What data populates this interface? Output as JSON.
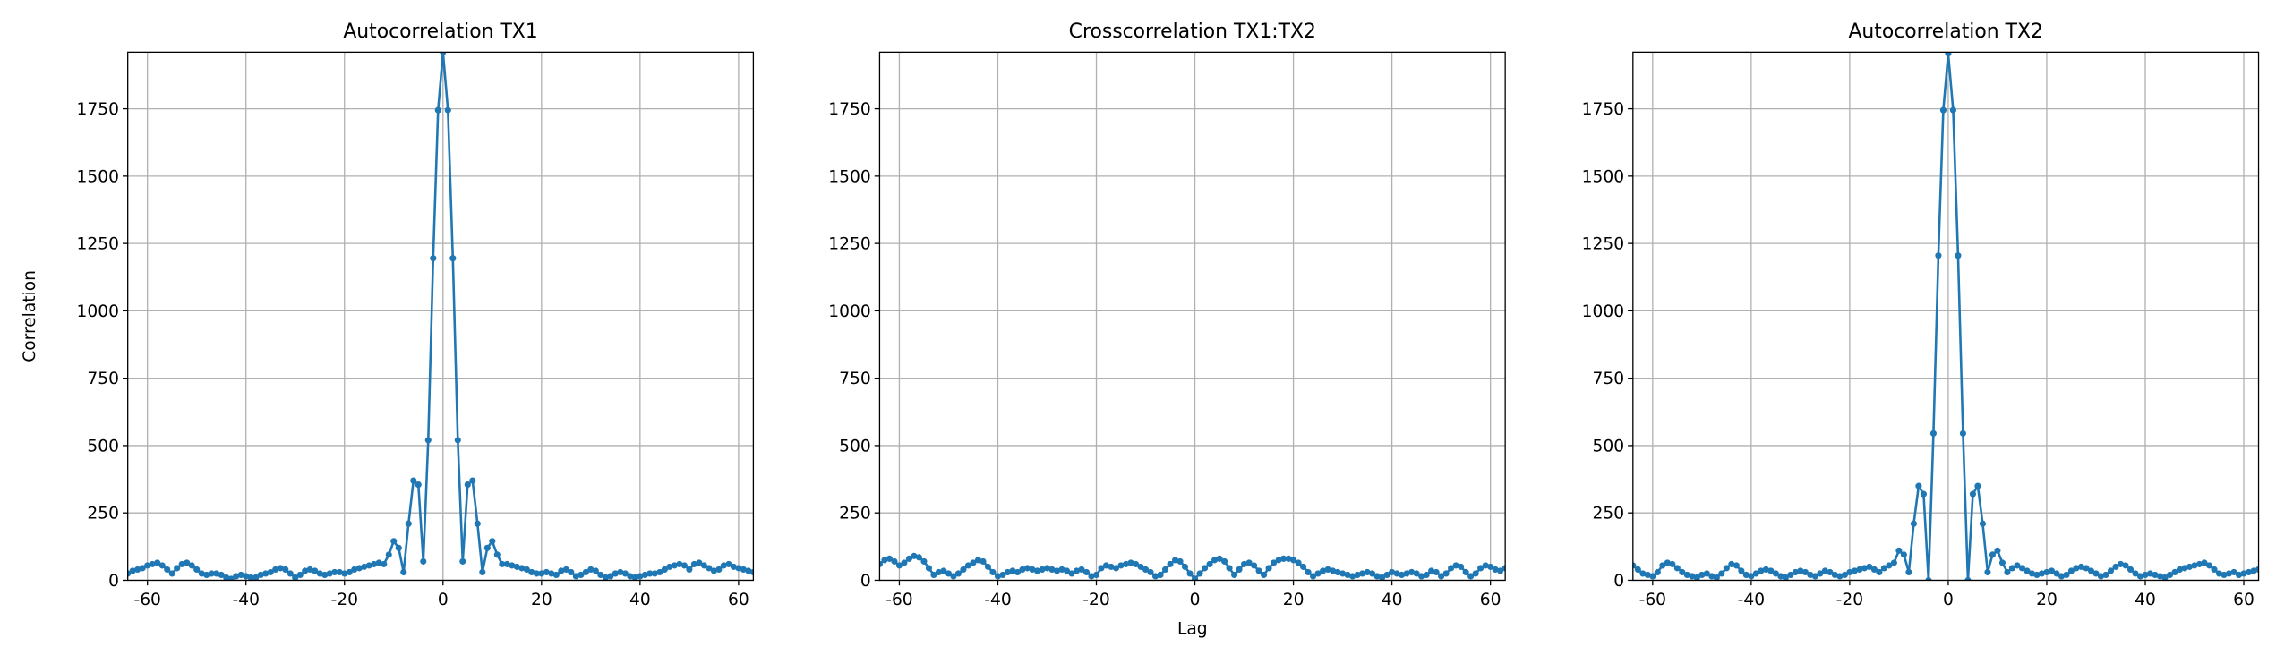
{
  "chart_data": [
    {
      "type": "line",
      "title": "Autocorrelation TX1",
      "ylabel": "Correlation",
      "x": [
        -64,
        -63,
        -62,
        -61,
        -60,
        -59,
        -58,
        -57,
        -56,
        -55,
        -54,
        -53,
        -52,
        -51,
        -50,
        -49,
        -48,
        -47,
        -46,
        -45,
        -44,
        -43,
        -42,
        -41,
        -40,
        -39,
        -38,
        -37,
        -36,
        -35,
        -34,
        -33,
        -32,
        -31,
        -30,
        -29,
        -28,
        -27,
        -26,
        -25,
        -24,
        -23,
        -22,
        -21,
        -20,
        -19,
        -18,
        -17,
        -16,
        -15,
        -14,
        -13,
        -12,
        -11,
        -10,
        -9,
        -8,
        -7,
        -6,
        -5,
        -4,
        -3,
        -2,
        -1,
        0,
        1,
        2,
        3,
        4,
        5,
        6,
        7,
        8,
        9,
        10,
        11,
        12,
        13,
        14,
        15,
        16,
        17,
        18,
        19,
        20,
        21,
        22,
        23,
        24,
        25,
        26,
        27,
        28,
        29,
        30,
        31,
        32,
        33,
        34,
        35,
        36,
        37,
        38,
        39,
        40,
        41,
        42,
        43,
        44,
        45,
        46,
        47,
        48,
        49,
        50,
        51,
        52,
        53,
        54,
        55,
        56,
        57,
        58,
        59,
        60,
        61,
        62,
        63
      ],
      "series": [
        {
          "color": "#1f77b4",
          "values": [
            25,
            35,
            40,
            45,
            55,
            60,
            65,
            55,
            40,
            25,
            45,
            60,
            65,
            55,
            40,
            25,
            20,
            25,
            25,
            20,
            10,
            5,
            15,
            20,
            15,
            10,
            10,
            20,
            25,
            30,
            40,
            45,
            40,
            25,
            10,
            20,
            35,
            40,
            35,
            25,
            20,
            25,
            30,
            30,
            25,
            30,
            40,
            45,
            50,
            55,
            60,
            65,
            60,
            95,
            145,
            120,
            30,
            210,
            370,
            355,
            70,
            520,
            1195,
            1745,
            1960,
            1745,
            1195,
            520,
            70,
            355,
            370,
            210,
            30,
            120,
            145,
            95,
            60,
            60,
            55,
            50,
            45,
            40,
            30,
            25,
            25,
            30,
            25,
            20,
            35,
            40,
            30,
            15,
            20,
            30,
            40,
            35,
            20,
            10,
            15,
            25,
            30,
            25,
            15,
            10,
            15,
            20,
            25,
            25,
            30,
            40,
            50,
            55,
            60,
            55,
            40,
            60,
            65,
            55,
            45,
            35,
            40,
            55,
            60,
            50,
            45,
            40,
            35,
            30
          ]
        }
      ],
      "xlim": [
        -64,
        63
      ],
      "ylim": [
        0,
        1960
      ],
      "xticks": [
        -60,
        -40,
        -20,
        0,
        20,
        40,
        60
      ],
      "yticks": [
        0,
        250,
        500,
        750,
        1000,
        1250,
        1500,
        1750
      ],
      "grid": true
    },
    {
      "type": "line",
      "title": "Crosscorrelation TX1:TX2",
      "xlabel": "Lag",
      "x": [
        -64,
        -63,
        -62,
        -61,
        -60,
        -59,
        -58,
        -57,
        -56,
        -55,
        -54,
        -53,
        -52,
        -51,
        -50,
        -49,
        -48,
        -47,
        -46,
        -45,
        -44,
        -43,
        -42,
        -41,
        -40,
        -39,
        -38,
        -37,
        -36,
        -35,
        -34,
        -33,
        -32,
        -31,
        -30,
        -29,
        -28,
        -27,
        -26,
        -25,
        -24,
        -23,
        -22,
        -21,
        -20,
        -19,
        -18,
        -17,
        -16,
        -15,
        -14,
        -13,
        -12,
        -11,
        -10,
        -9,
        -8,
        -7,
        -6,
        -5,
        -4,
        -3,
        -2,
        -1,
        0,
        1,
        2,
        3,
        4,
        5,
        6,
        7,
        8,
        9,
        10,
        11,
        12,
        13,
        14,
        15,
        16,
        17,
        18,
        19,
        20,
        21,
        22,
        23,
        24,
        25,
        26,
        27,
        28,
        29,
        30,
        31,
        32,
        33,
        34,
        35,
        36,
        37,
        38,
        39,
        40,
        41,
        42,
        43,
        44,
        45,
        46,
        47,
        48,
        49,
        50,
        51,
        52,
        53,
        54,
        55,
        56,
        57,
        58,
        59,
        60,
        61,
        62,
        63
      ],
      "series": [
        {
          "color": "#1f77b4",
          "values": [
            60,
            75,
            80,
            70,
            55,
            65,
            80,
            90,
            85,
            70,
            45,
            20,
            30,
            35,
            25,
            15,
            25,
            40,
            55,
            65,
            75,
            70,
            50,
            30,
            15,
            20,
            30,
            35,
            30,
            40,
            45,
            40,
            35,
            40,
            45,
            40,
            35,
            40,
            35,
            25,
            35,
            40,
            30,
            15,
            20,
            45,
            55,
            50,
            45,
            55,
            60,
            65,
            60,
            50,
            40,
            30,
            15,
            20,
            40,
            60,
            75,
            70,
            50,
            25,
            5,
            25,
            45,
            60,
            75,
            80,
            70,
            45,
            20,
            40,
            60,
            65,
            55,
            35,
            20,
            45,
            65,
            75,
            80,
            80,
            75,
            65,
            50,
            30,
            15,
            25,
            35,
            40,
            35,
            30,
            25,
            20,
            15,
            20,
            25,
            30,
            25,
            15,
            10,
            20,
            30,
            25,
            20,
            25,
            30,
            25,
            15,
            20,
            35,
            30,
            15,
            25,
            45,
            55,
            50,
            30,
            15,
            25,
            45,
            55,
            50,
            40,
            35,
            45
          ]
        }
      ],
      "xlim": [
        -64,
        63
      ],
      "ylim": [
        0,
        1960
      ],
      "xticks": [
        -60,
        -40,
        -20,
        0,
        20,
        40,
        60
      ],
      "yticks": [
        0,
        250,
        500,
        750,
        1000,
        1250,
        1500,
        1750
      ],
      "grid": true
    },
    {
      "type": "line",
      "title": "Autocorrelation TX2",
      "x": [
        -64,
        -63,
        -62,
        -61,
        -60,
        -59,
        -58,
        -57,
        -56,
        -55,
        -54,
        -53,
        -52,
        -51,
        -50,
        -49,
        -48,
        -47,
        -46,
        -45,
        -44,
        -43,
        -42,
        -41,
        -40,
        -39,
        -38,
        -37,
        -36,
        -35,
        -34,
        -33,
        -32,
        -31,
        -30,
        -29,
        -28,
        -27,
        -26,
        -25,
        -24,
        -23,
        -22,
        -21,
        -20,
        -19,
        -18,
        -17,
        -16,
        -15,
        -14,
        -13,
        -12,
        -11,
        -10,
        -9,
        -8,
        -7,
        -6,
        -5,
        -4,
        -3,
        -2,
        -1,
        0,
        1,
        2,
        3,
        4,
        5,
        6,
        7,
        8,
        9,
        10,
        11,
        12,
        13,
        14,
        15,
        16,
        17,
        18,
        19,
        20,
        21,
        22,
        23,
        24,
        25,
        26,
        27,
        28,
        29,
        30,
        31,
        32,
        33,
        34,
        35,
        36,
        37,
        38,
        39,
        40,
        41,
        42,
        43,
        44,
        45,
        46,
        47,
        48,
        49,
        50,
        51,
        52,
        53,
        54,
        55,
        56,
        57,
        58,
        59,
        60,
        61,
        62,
        63
      ],
      "series": [
        {
          "color": "#1f77b4",
          "values": [
            55,
            40,
            25,
            20,
            15,
            30,
            55,
            65,
            60,
            45,
            30,
            20,
            15,
            10,
            20,
            25,
            15,
            10,
            25,
            45,
            60,
            55,
            35,
            20,
            15,
            25,
            35,
            40,
            35,
            25,
            15,
            10,
            20,
            30,
            35,
            30,
            20,
            15,
            25,
            35,
            30,
            20,
            15,
            20,
            30,
            35,
            40,
            45,
            50,
            40,
            30,
            45,
            55,
            65,
            110,
            95,
            30,
            210,
            350,
            320,
            0,
            545,
            1205,
            1745,
            1955,
            1745,
            1205,
            545,
            0,
            320,
            350,
            210,
            30,
            95,
            110,
            65,
            30,
            45,
            55,
            45,
            35,
            25,
            20,
            25,
            30,
            35,
            25,
            15,
            20,
            35,
            45,
            50,
            45,
            35,
            25,
            15,
            20,
            35,
            50,
            60,
            55,
            40,
            25,
            15,
            20,
            25,
            20,
            15,
            10,
            20,
            30,
            40,
            45,
            50,
            55,
            60,
            65,
            55,
            40,
            25,
            20,
            25,
            30,
            20,
            25,
            30,
            35,
            40
          ]
        }
      ],
      "xlim": [
        -64,
        63
      ],
      "ylim": [
        0,
        1960
      ],
      "xticks": [
        -60,
        -40,
        -20,
        0,
        20,
        40,
        60
      ],
      "yticks": [
        0,
        250,
        500,
        750,
        1000,
        1250,
        1500,
        1750
      ],
      "grid": true
    }
  ]
}
